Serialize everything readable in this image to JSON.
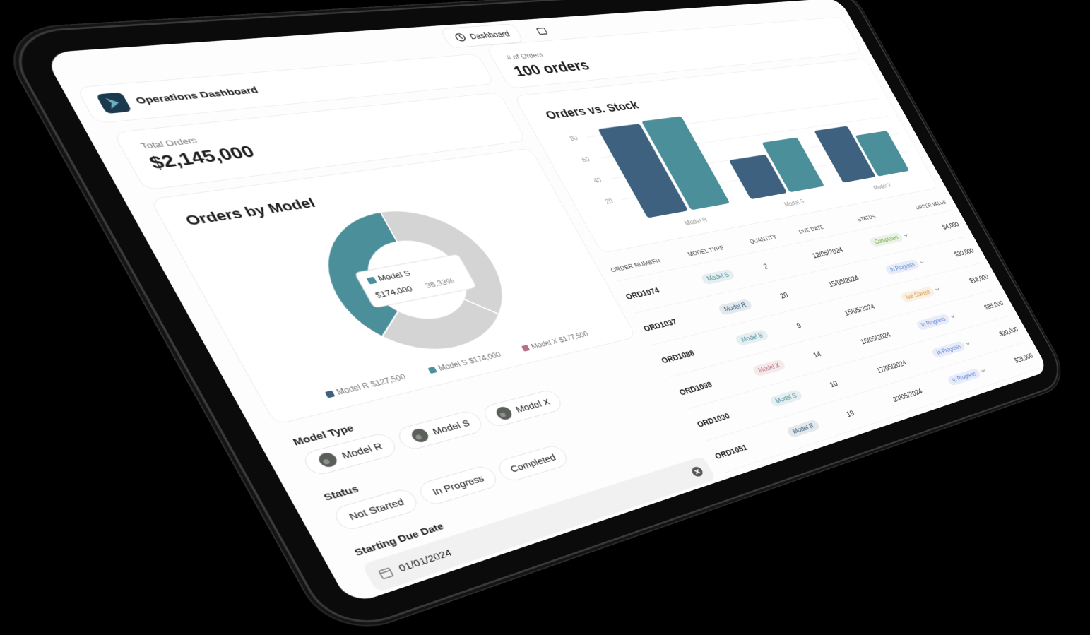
{
  "nav": {
    "label": "Dashboard"
  },
  "header": {
    "title": "Operations Dashboard"
  },
  "total_orders": {
    "label": "Total Orders",
    "value": "$2,145,000"
  },
  "order_count": {
    "label": "# of Orders",
    "value": "100 orders"
  },
  "chart_data": [
    {
      "type": "pie",
      "donut": true,
      "title": "Orders by Model",
      "categories": [
        "Model R",
        "Model S",
        "Model X"
      ],
      "values": [
        127500,
        174000,
        177500
      ],
      "value_labels": [
        "$127,500",
        "$174,000",
        "$177,500"
      ],
      "colors": [
        "#3e6180",
        "#4b8f9b",
        "#b86f80"
      ],
      "highlight": 1,
      "inactive_color": "#d4d4d4",
      "tooltip_percent": {
        "value": 36.33,
        "label": "36.33%"
      }
    },
    {
      "type": "bar",
      "title": "Orders vs. Stock",
      "categories": [
        "Model R",
        "Model S",
        "Model X"
      ],
      "series": [
        {
          "color": "#3e6180",
          "values": [
            86,
            40,
            56
          ]
        },
        {
          "color": "#4b8f9b",
          "values": [
            88,
            52,
            45
          ]
        }
      ],
      "ylim": [
        0,
        90
      ],
      "yticks": [
        20,
        40,
        60,
        80
      ],
      "grid": true
    }
  ],
  "filters": {
    "model_type": {
      "label": "Model Type",
      "options": [
        "Model R",
        "Model S",
        "Model X"
      ]
    },
    "status": {
      "label": "Status",
      "options": [
        "Not Started",
        "In Progress",
        "Completed"
      ]
    },
    "due_date": {
      "label": "Starting Due Date",
      "value": "01/01/2024"
    }
  },
  "table": {
    "columns": [
      "ORDER NUMBER",
      "MODEL TYPE",
      "QUANTITY",
      "DUE DATE",
      "STATUS",
      "ORDER VALUE"
    ],
    "rows": [
      [
        "ORD1074",
        "Model S",
        2,
        "12/05/2024",
        "Completed",
        "$4,000"
      ],
      [
        "ORD1037",
        "Model R",
        20,
        "15/05/2024",
        "In Progress",
        "$30,000"
      ],
      [
        "ORD1088",
        "Model S",
        9,
        "15/05/2024",
        "Not Started",
        "$18,000"
      ],
      [
        "ORD1098",
        "Model X",
        14,
        "16/05/2024",
        "In Progress",
        "$35,000"
      ],
      [
        "ORD1030",
        "Model S",
        10,
        "17/05/2024",
        "In Progress",
        "$20,000"
      ],
      [
        "ORD1051",
        "Model R",
        19,
        "23/05/2024",
        "In Progress",
        "$28,500"
      ]
    ]
  }
}
